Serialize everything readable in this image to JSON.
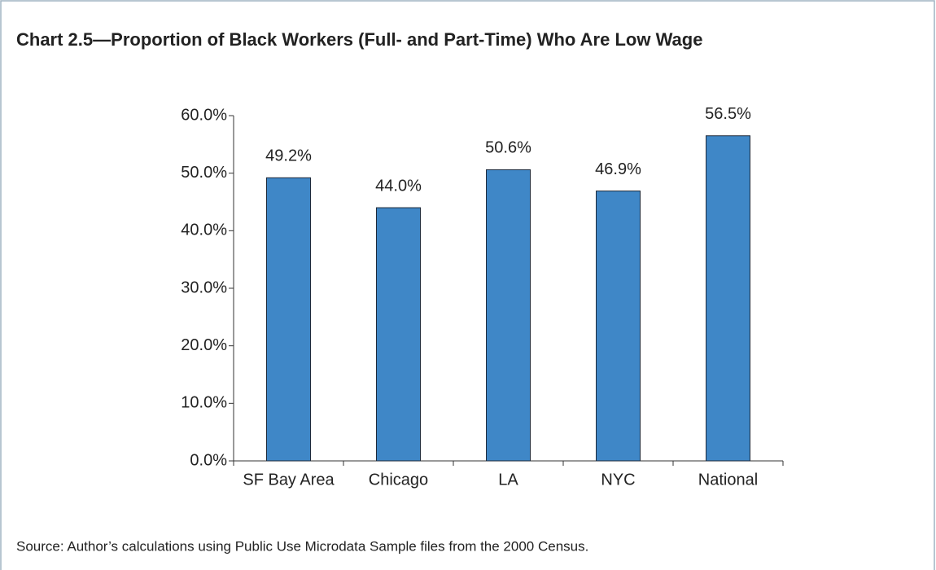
{
  "chart_data": {
    "type": "bar",
    "title": "Chart 2.5—Proportion of Black Workers (Full- and Part-Time) Who Are Low Wage",
    "categories": [
      "SF Bay Area",
      "Chicago",
      "LA",
      "NYC",
      "National"
    ],
    "values": [
      49.2,
      44.0,
      50.6,
      46.9,
      56.5
    ],
    "value_labels": [
      "49.2%",
      "44.0%",
      "50.6%",
      "46.9%",
      "56.5%"
    ],
    "color": "#3f87c7",
    "ylim": [
      0,
      60
    ],
    "yticks": [
      {
        "value": 0,
        "label": "0.0%"
      },
      {
        "value": 10,
        "label": "10.0%"
      },
      {
        "value": 20,
        "label": "20.0%"
      },
      {
        "value": 30,
        "label": "30.0%"
      },
      {
        "value": 40,
        "label": "40.0%"
      },
      {
        "value": 50,
        "label": "50.0%"
      },
      {
        "value": 60,
        "label": "60.0%"
      }
    ],
    "source": "Source: Author’s calculations using Public Use Microdata Sample files from the 2000 Census."
  }
}
